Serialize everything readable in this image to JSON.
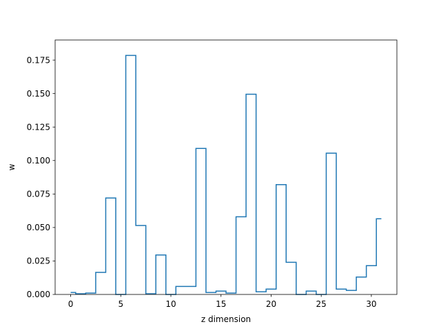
{
  "chart_data": {
    "type": "line",
    "drawstyle": "steps-mid",
    "title": "",
    "xlabel": "z dimension",
    "ylabel": "w",
    "xlim": [
      -1.55,
      32.55
    ],
    "ylim": [
      0.0,
      0.19
    ],
    "x_ticks": [
      0,
      5,
      10,
      15,
      20,
      25,
      30
    ],
    "y_ticks": [
      0.0,
      0.025,
      0.05,
      0.075,
      0.1,
      0.125,
      0.15,
      0.175
    ],
    "y_tick_labels": [
      "0.000",
      "0.025",
      "0.050",
      "0.075",
      "0.100",
      "0.125",
      "0.150",
      "0.175"
    ],
    "grid": false,
    "line_color": "#1f77b4",
    "series": [
      {
        "x": [
          0,
          1,
          2,
          3,
          4,
          5,
          6,
          7,
          8,
          9,
          10,
          11,
          12,
          13,
          14,
          15,
          16,
          17,
          18,
          19,
          20,
          21,
          22,
          23,
          24,
          25,
          26,
          27,
          28,
          29,
          30,
          31
        ],
        "values": [
          0.0015,
          0.0005,
          0.001,
          0.0165,
          0.072,
          0.0,
          0.1785,
          0.0515,
          0.0005,
          0.0295,
          0.0,
          0.006,
          0.006,
          0.109,
          0.0015,
          0.0025,
          0.001,
          0.058,
          0.1495,
          0.002,
          0.004,
          0.082,
          0.024,
          0.0,
          0.0025,
          0.0,
          0.1055,
          0.004,
          0.003,
          0.013,
          0.0215,
          0.0565
        ]
      }
    ]
  }
}
